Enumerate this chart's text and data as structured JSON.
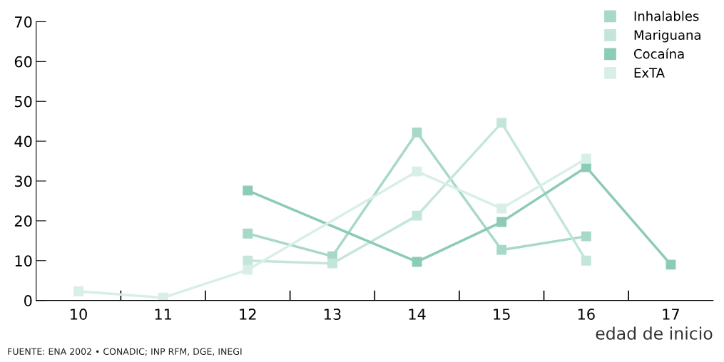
{
  "chart_data": {
    "type": "line",
    "categories": [
      "10",
      "11",
      "12",
      "13",
      "14",
      "15",
      "16",
      "17"
    ],
    "series": [
      {
        "name": "Inhalables",
        "color": "#a8d8c8",
        "values": [
          null,
          null,
          16.8,
          11.1,
          42.2,
          12.7,
          16.1,
          null
        ]
      },
      {
        "name": "Mariguana",
        "color": "#c4e6da",
        "values": [
          null,
          null,
          10,
          9.3,
          21.3,
          44.6,
          10,
          null
        ]
      },
      {
        "name": "Cocaína",
        "color": "#8ccbb5",
        "values": [
          null,
          null,
          27.6,
          null,
          9.7,
          19.7,
          33.5,
          9.0
        ]
      },
      {
        "name": "ExTA",
        "color": "#d8efe6",
        "values": [
          2.3,
          0.7,
          7.7,
          null,
          32.4,
          23.1,
          35.6,
          null
        ]
      }
    ],
    "ylim": [
      0,
      70
    ],
    "yticks": [
      0,
      10,
      20,
      30,
      40,
      50,
      60,
      70
    ],
    "xlabel": "edad de inicio",
    "annotations": [
      "FUENTE: ENA 2002 • CONADIC; INP RFM, DGE, INEGI"
    ],
    "legend": "top right",
    "marker": "square",
    "line_style": "solid",
    "grid": false
  }
}
